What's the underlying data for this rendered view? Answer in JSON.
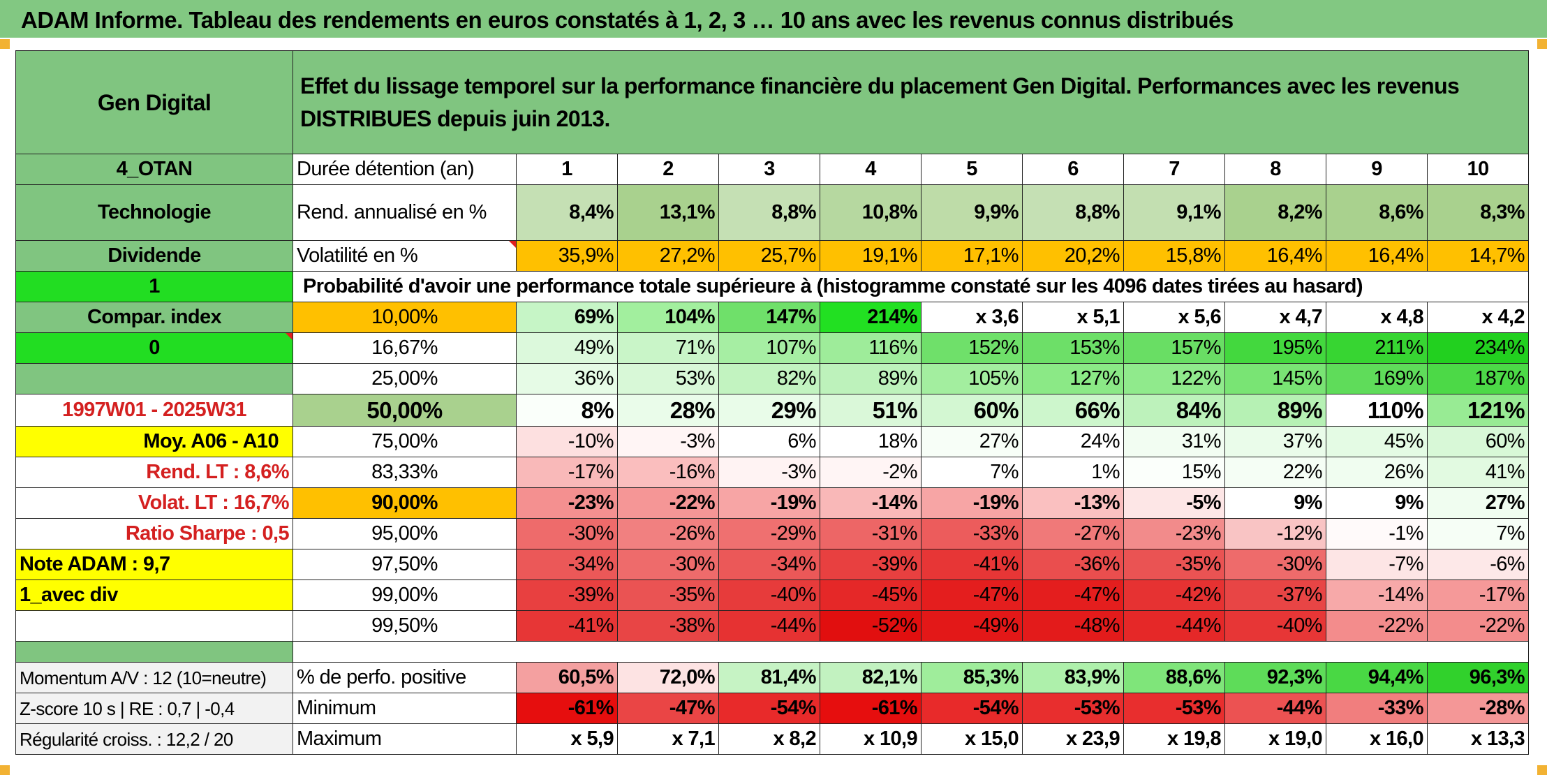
{
  "title": "ADAM Informe. Tableau des rendements en euros constatés à 1, 2, 3 … 10 ans avec les revenus connus distribués",
  "left": {
    "name": "Gen Digital",
    "code": "4_OTAN",
    "sector": "Technologie",
    "type": "Dividende",
    "flag1": "1",
    "compar_label": "Compar. index",
    "flag0": "0",
    "period": "1997W01 - 2025W31",
    "moy_label": "Moy. A06 - A10",
    "rend_lt": "Rend. LT :   8,6%",
    "volat_lt": "Volat. LT :   16,7%",
    "sharpe": "Ratio Sharpe :    0,5",
    "note": "Note ADAM : 9,7",
    "avec_div": "1_avec div",
    "momentum": "Momentum A/V : 12 (10=neutre)",
    "zscore": "Z-score 10 s | RE : 0,7 | -0,4",
    "regularite": "Régularité croiss. : 12,2 / 20"
  },
  "header_text": "Effet du lissage temporel sur la performance financière du placement Gen Digital. Performances avec les revenus DISTRIBUES depuis juin 2013.",
  "duree_label": "Durée détention (an)",
  "years": [
    "1",
    "2",
    "3",
    "4",
    "5",
    "6",
    "7",
    "8",
    "9",
    "10"
  ],
  "rend_label": "Rend. annualisé en %",
  "rend": [
    "8,4%",
    "13,1%",
    "8,8%",
    "10,8%",
    "9,9%",
    "8,8%",
    "9,1%",
    "8,2%",
    "8,6%",
    "8,3%"
  ],
  "vol_label": "Volatilité en %",
  "vol": [
    "35,9%",
    "27,2%",
    "25,7%",
    "19,1%",
    "17,1%",
    "20,2%",
    "15,8%",
    "16,4%",
    "16,4%",
    "14,7%"
  ],
  "proba_label": "Probabilité d'avoir une performance totale supérieure à (histogramme constaté sur les 4096 dates tirées au hasard)",
  "pct_rows": [
    {
      "p": "10,00%",
      "v": [
        "69%",
        "104%",
        "147%",
        "214%",
        "x 3,6",
        "x 5,1",
        "x 5,6",
        "x 4,7",
        "x 4,8",
        "x 4,2"
      ]
    },
    {
      "p": "16,67%",
      "v": [
        "49%",
        "71%",
        "107%",
        "116%",
        "152%",
        "153%",
        "157%",
        "195%",
        "211%",
        "234%"
      ]
    },
    {
      "p": "25,00%",
      "v": [
        "36%",
        "53%",
        "82%",
        "89%",
        "105%",
        "127%",
        "122%",
        "145%",
        "169%",
        "187%"
      ]
    },
    {
      "p": "50,00%",
      "v": [
        "8%",
        "28%",
        "29%",
        "51%",
        "60%",
        "66%",
        "84%",
        "89%",
        "110%",
        "121%"
      ]
    },
    {
      "p": "75,00%",
      "v": [
        "-10%",
        "-3%",
        "6%",
        "18%",
        "27%",
        "24%",
        "31%",
        "37%",
        "45%",
        "60%"
      ]
    },
    {
      "p": "83,33%",
      "v": [
        "-17%",
        "-16%",
        "-3%",
        "-2%",
        "7%",
        "1%",
        "15%",
        "22%",
        "26%",
        "41%"
      ]
    },
    {
      "p": "90,00%",
      "v": [
        "-23%",
        "-22%",
        "-19%",
        "-14%",
        "-19%",
        "-13%",
        "-5%",
        "9%",
        "9%",
        "27%"
      ]
    },
    {
      "p": "95,00%",
      "v": [
        "-30%",
        "-26%",
        "-29%",
        "-31%",
        "-33%",
        "-27%",
        "-23%",
        "-12%",
        "-1%",
        "7%"
      ]
    },
    {
      "p": "97,50%",
      "v": [
        "-34%",
        "-30%",
        "-34%",
        "-39%",
        "-41%",
        "-36%",
        "-35%",
        "-30%",
        "-7%",
        "-6%"
      ]
    },
    {
      "p": "99,00%",
      "v": [
        "-39%",
        "-35%",
        "-40%",
        "-45%",
        "-47%",
        "-47%",
        "-42%",
        "-37%",
        "-14%",
        "-17%"
      ]
    },
    {
      "p": "99,50%",
      "v": [
        "-41%",
        "-38%",
        "-44%",
        "-52%",
        "-49%",
        "-48%",
        "-44%",
        "-40%",
        "-22%",
        "-22%"
      ]
    }
  ],
  "pos_label": "% de perfo. positive",
  "pos": [
    "60,5%",
    "72,0%",
    "81,4%",
    "82,1%",
    "85,3%",
    "83,9%",
    "88,6%",
    "92,3%",
    "94,4%",
    "96,3%"
  ],
  "min_label": "Minimum",
  "min": [
    "-61%",
    "-47%",
    "-54%",
    "-61%",
    "-54%",
    "-53%",
    "-53%",
    "-44%",
    "-33%",
    "-28%"
  ],
  "max_label": "Maximum",
  "max": [
    "x 5,9",
    "x 7,1",
    "x 8,2",
    "x 10,9",
    "x 15,0",
    "x 23,9",
    "x 19,8",
    "x 19,0",
    "x 16,0",
    "x 13,3"
  ],
  "colors": {
    "header_green": "#80c580",
    "yellow": "#ffff00",
    "orange": "#ffc000",
    "lime": "#22dd22",
    "red_text": "#d42020"
  }
}
